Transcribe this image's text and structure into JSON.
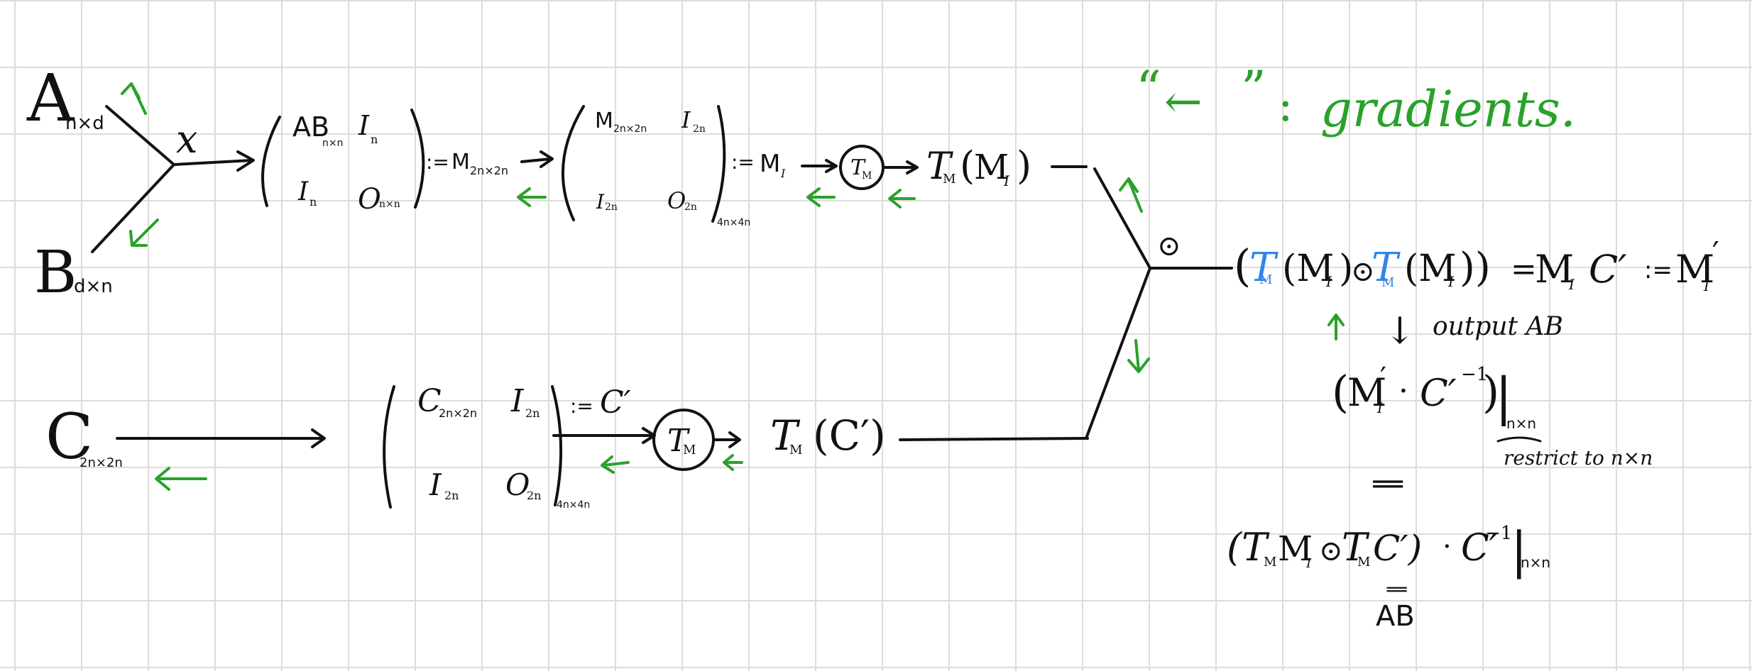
{
  "legend": {
    "quote_open": "“",
    "arrow_glyph": "←",
    "quote_close": "”",
    "colon": ":",
    "label": "gradients."
  },
  "inputs": {
    "A": {
      "letter": "A",
      "sub": "n×d"
    },
    "B": {
      "letter": "B",
      "sub": "d×n"
    },
    "C": {
      "letter": "C",
      "sub": "2n×2n"
    }
  },
  "multiply": {
    "symbol": "x"
  },
  "matrix1": {
    "tl": "AB",
    "tl_sub": "n×n",
    "tr": "I",
    "tr_sub": "n",
    "bl": "I",
    "bl_sub": "n",
    "br": "O",
    "br_sub": "n×n"
  },
  "def1": {
    "assign": ":=",
    "name": "M",
    "name_sub": "2n×2n"
  },
  "matrix2": {
    "tl": "M",
    "tl_sub": "2n×2n",
    "tr": "I",
    "tr_sub": "2n",
    "bl": "I",
    "bl_sub": "2n",
    "br": "O",
    "br_sub": "2n",
    "outer_sub": "4n×4n"
  },
  "def2": {
    "assign": ":=",
    "name": "M",
    "name_sub": "I"
  },
  "tm_op_top": {
    "label": "T",
    "sub": "M"
  },
  "tm_out_top": {
    "T": "T",
    "T_sub": "M",
    "paren_open": "(",
    "arg": "M",
    "arg_sub": "I",
    "paren_close": ")"
  },
  "matrix3": {
    "tl": "C",
    "tl_sub": "2n×2n",
    "tr": "I",
    "tr_sub": "2n",
    "bl": "I",
    "bl_sub": "2n",
    "br": "O",
    "br_sub": "2n",
    "outer_sub": "4n×4n"
  },
  "def3": {
    "assign": ":=",
    "name": "C′"
  },
  "tm_op_bot": {
    "label": "T",
    "sub": "M"
  },
  "tm_out_bot": {
    "T": "T",
    "T_sub": "M",
    "text": "(C′)"
  },
  "odot": {
    "symbol": "⊙"
  },
  "result": {
    "open": "(",
    "t1": "T",
    "t1_sub": "M",
    "m1": "(M",
    "m1_sub": "I",
    "close1": ")",
    "dot": "⊙",
    "t2": "T",
    "t2_sub": "M",
    "m2": "(M",
    "m2_sub": "I",
    "close2": "))",
    "eq": "=",
    "rhs_m": "M",
    "rhs_m_sub": "I",
    "rhs_c": "C′",
    "assign": ":=",
    "rhs2": "M",
    "rhs2_sub": "I",
    "rhs2_prime": "′"
  },
  "output": {
    "arrow": "↓",
    "label": "output AB"
  },
  "restrict": {
    "open": "(",
    "m": "M",
    "m_sub": "I",
    "m_prime": "′",
    "dot": "·",
    "c": "C′",
    "c_sup": "−1",
    "close": ")",
    "bar": "|",
    "sub": "n×n",
    "note": "restrict to n×n"
  },
  "equals1": {
    "symbol": "‖"
  },
  "expanded": {
    "text": "(T",
    "t_sub": "M",
    "m": "M",
    "m_sub": "I",
    "dot": "⊙",
    "t2": "T",
    "t2_sub": "M",
    "c": "C′)",
    "dot2": "·",
    "c2": "C′",
    "c2_sup": "−1",
    "bar": "|",
    "sub": "n×n"
  },
  "equals2": {
    "symbol": "‖"
  },
  "final": {
    "label": "AB"
  },
  "colors": {
    "ink": "#111111",
    "gradient": "#2aa12a",
    "highlight": "#2f86e8",
    "grid": "#dcdcdc"
  }
}
